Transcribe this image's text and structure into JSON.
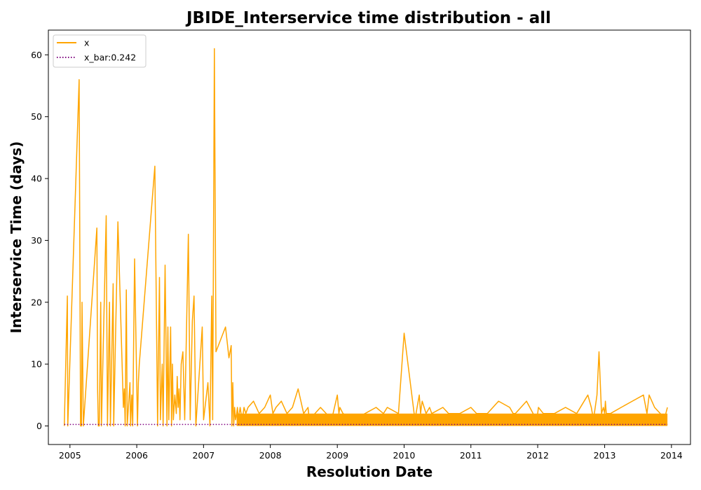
{
  "chart_data": {
    "type": "line",
    "title": "JBIDE_Interservice time distribution - all",
    "xlabel": "Resolution Date",
    "ylabel": "Interservice Time (days)",
    "xlim": [
      "2004-09-05",
      "2014-04-15"
    ],
    "ylim": [
      -3,
      64
    ],
    "x_ticks": [
      "2005",
      "2006",
      "2007",
      "2008",
      "2009",
      "2010",
      "2011",
      "2012",
      "2013",
      "2014"
    ],
    "y_ticks": [
      0,
      10,
      20,
      30,
      40,
      50,
      60
    ],
    "grid": false,
    "legend_position": "top-left",
    "colors": {
      "x": "#ffa500",
      "x_bar": "#800080"
    },
    "series": [
      {
        "name": "x",
        "x": [
          "2004-12-01",
          "2004-12-18",
          "2004-12-20",
          "2005-02-20",
          "2005-02-28",
          "2005-03-05",
          "2005-03-08",
          "2005-03-15",
          "2005-05-28",
          "2005-06-01",
          "2005-06-05",
          "2005-06-10",
          "2005-06-18",
          "2005-06-22",
          "2005-07-18",
          "2005-07-25",
          "2005-08-05",
          "2005-08-10",
          "2005-08-25",
          "2005-08-28",
          "2005-09-20",
          "2005-10-20",
          "2005-10-25",
          "2005-10-30",
          "2005-11-05",
          "2005-11-10",
          "2005-11-25",
          "2005-11-28",
          "2005-12-05",
          "2005-12-10",
          "2005-12-20",
          "2006-01-05",
          "2006-01-10",
          "2006-01-15",
          "2006-04-10",
          "2006-04-25",
          "2006-05-05",
          "2006-05-10",
          "2006-05-20",
          "2006-05-25",
          "2006-06-05",
          "2006-06-15",
          "2006-06-20",
          "2006-06-25",
          "2006-07-05",
          "2006-07-10",
          "2006-07-15",
          "2006-07-20",
          "2006-07-28",
          "2006-08-05",
          "2006-08-10",
          "2006-08-15",
          "2006-08-20",
          "2006-08-25",
          "2006-09-01",
          "2006-09-10",
          "2006-09-20",
          "2006-10-01",
          "2006-10-10",
          "2006-10-20",
          "2006-11-01",
          "2006-11-10",
          "2006-11-20",
          "2006-12-25",
          "2007-01-01",
          "2007-01-25",
          "2007-02-05",
          "2007-02-15",
          "2007-02-20",
          "2007-03-01",
          "2007-03-10",
          "2007-05-01",
          "2007-05-20",
          "2007-06-01",
          "2007-06-05",
          "2007-06-10",
          "2007-06-15",
          "2007-06-20",
          "2007-06-25",
          "2007-07-01",
          "2007-07-05",
          "2007-07-10",
          "2007-07-15",
          "2007-07-20",
          "2007-07-25",
          "2007-08-01",
          "2007-08-10",
          "2007-08-20",
          "2007-09-01",
          "2007-10-01",
          "2007-11-01",
          "2007-12-01",
          "2008-01-01",
          "2008-01-15",
          "2008-02-01",
          "2008-03-01",
          "2008-04-01",
          "2008-05-01",
          "2008-06-01",
          "2008-07-01",
          "2008-07-25",
          "2008-08-01",
          "2008-09-01",
          "2008-10-01",
          "2008-11-01",
          "2008-12-01",
          "2009-01-01",
          "2009-01-10",
          "2009-01-15",
          "2009-02-01",
          "2009-04-01",
          "2009-06-01",
          "2009-08-01",
          "2009-09-10",
          "2009-10-01",
          "2009-12-01",
          "2010-01-01",
          "2010-03-01",
          "2010-03-25",
          "2010-04-01",
          "2010-04-05",
          "2010-04-10",
          "2010-05-01",
          "2010-05-20",
          "2010-06-01",
          "2010-08-01",
          "2010-09-01",
          "2010-11-01",
          "2011-01-01",
          "2011-02-01",
          "2011-04-01",
          "2011-06-01",
          "2011-08-01",
          "2011-08-20",
          "2011-09-01",
          "2011-11-01",
          "2011-12-25",
          "2012-01-01",
          "2012-01-05",
          "2012-02-01",
          "2012-04-01",
          "2012-06-01",
          "2012-08-01",
          "2012-10-01",
          "2012-10-20",
          "2012-11-01",
          "2012-11-20",
          "2012-12-01",
          "2012-12-15",
          "2012-12-25",
          "2013-01-01",
          "2013-01-05",
          "2013-01-10",
          "2013-02-01",
          "2013-04-01",
          "2013-06-01",
          "2013-08-01",
          "2013-08-20",
          "2013-09-01",
          "2013-10-01",
          "2013-11-01",
          "2013-11-20",
          "2013-12-01",
          "2013-12-10"
        ],
        "values": [
          0,
          21,
          0,
          56,
          0,
          0,
          20,
          0,
          32,
          6,
          0,
          0,
          20,
          0,
          34,
          0,
          20,
          0,
          23,
          0,
          33,
          3,
          6,
          0,
          22,
          0,
          7,
          0,
          5,
          0,
          27,
          0,
          7,
          10,
          42,
          0,
          24,
          1,
          10,
          0,
          26,
          0,
          16,
          1,
          16,
          0,
          10,
          1,
          5,
          2,
          8,
          3,
          6,
          1,
          10,
          12,
          1,
          17,
          31,
          1,
          17,
          21,
          0,
          16,
          1,
          7,
          0,
          21,
          1,
          61,
          12,
          16,
          11,
          13,
          0,
          7,
          0,
          3,
          1,
          2,
          3,
          1,
          2,
          3,
          2,
          1,
          3,
          2,
          3,
          4,
          2,
          3,
          5,
          2,
          3,
          4,
          2,
          3,
          6,
          2,
          3,
          1,
          2,
          3,
          2,
          1,
          5,
          2,
          3,
          2,
          1,
          2,
          3,
          2,
          3,
          2,
          15,
          1,
          5,
          2,
          3,
          4,
          2,
          3,
          2,
          3,
          2,
          2,
          3,
          2,
          2,
          4,
          3,
          2,
          2,
          4,
          1,
          2,
          3,
          2,
          2,
          3,
          2,
          5,
          3,
          1,
          5,
          12,
          2,
          3,
          2,
          4,
          2,
          2,
          3,
          4,
          5,
          2,
          5,
          3,
          2,
          1,
          2,
          3
        ]
      },
      {
        "name": "x_bar:0.242",
        "constant": 0.242
      }
    ]
  }
}
